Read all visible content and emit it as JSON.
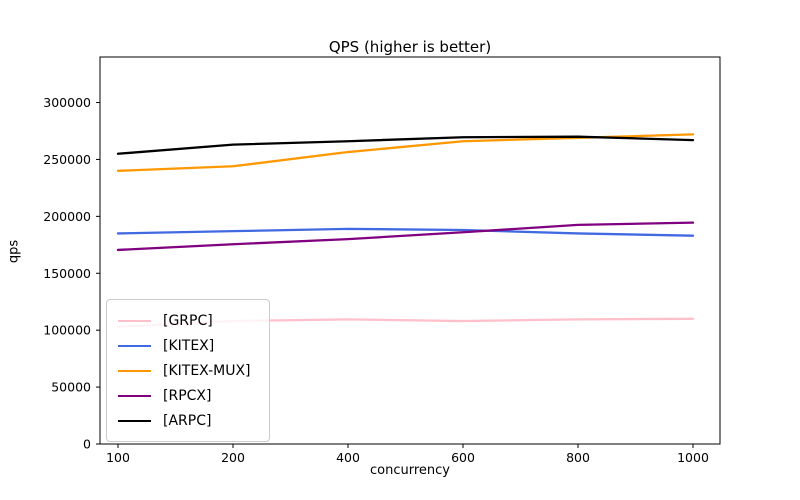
{
  "figure": {
    "title": "QPS (higher is better)"
  },
  "chart_data": {
    "type": "line",
    "title": "QPS (higher is better)",
    "xlabel": "concurrency",
    "ylabel": "qps",
    "categories": [
      "100",
      "200",
      "400",
      "600",
      "800",
      "1000"
    ],
    "x_layout": "categorical-even-spacing",
    "ylim": [
      0,
      340000
    ],
    "yticks": [
      0,
      50000,
      100000,
      150000,
      200000,
      250000,
      300000
    ],
    "grid": false,
    "legend_position": "lower-left",
    "series": [
      {
        "name": "[GRPC]",
        "color": "#ffc0cb",
        "values": [
          103000,
          108000,
          109500,
          108000,
          109500,
          110000
        ]
      },
      {
        "name": "[KITEX]",
        "color": "#4169e1",
        "values": [
          185000,
          187000,
          189000,
          188000,
          185000,
          183000
        ]
      },
      {
        "name": "[KITEX-MUX]",
        "color": "#ff9800",
        "values": [
          240000,
          244000,
          256500,
          266000,
          269000,
          272000
        ]
      },
      {
        "name": "[RPCX]",
        "color": "#800080",
        "values": [
          170500,
          175500,
          180000,
          186000,
          192500,
          194500
        ]
      },
      {
        "name": "[ARPC]",
        "color": "#000000",
        "values": [
          255000,
          263000,
          266000,
          269500,
          270000,
          267000
        ]
      }
    ]
  }
}
